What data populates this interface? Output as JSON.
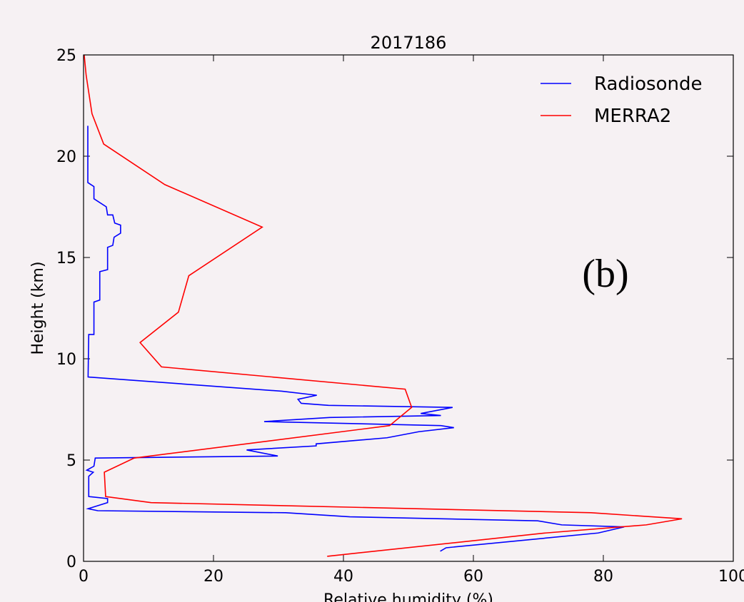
{
  "chart_data": {
    "type": "line",
    "title": "2017186",
    "xlabel": "Relative humidity (%)",
    "ylabel": "Height (km)",
    "xlim": [
      0,
      100
    ],
    "xticks": [
      0,
      20,
      40,
      60,
      80,
      100
    ],
    "ylim": [
      0,
      25
    ],
    "yticks": [
      0,
      5,
      10,
      15,
      20,
      25
    ],
    "legend": "upper right",
    "annotation": "(b)",
    "series": [
      {
        "name": "Radiosonde",
        "color": "#0000ff",
        "x": [
          0.66,
          0.66,
          1.6,
          1.6,
          3.5,
          3.7,
          4.5,
          4.8,
          5.7,
          5.7,
          4.7,
          4.5,
          3.7,
          3.7,
          2.5,
          2.5,
          1.6,
          1.6,
          0.8,
          0.7,
          30.5,
          35.9,
          33,
          33.5,
          37.7,
          56.8,
          51.9,
          55,
          37.9,
          27.8,
          55,
          57,
          51.6,
          46.7,
          35.8,
          35.8,
          25.1,
          29.9,
          1.8,
          1.6,
          0.5,
          1.5,
          0.8,
          0.8,
          3.7,
          3.7,
          0.7,
          2.2,
          31.1,
          41,
          69.9,
          73.6,
          83.2,
          79.2,
          55.8,
          54.9
        ],
        "values": [
          21.5,
          18.7,
          18.5,
          17.9,
          17.5,
          17.1,
          17.1,
          16.7,
          16.6,
          16.2,
          16.0,
          15.6,
          15.5,
          14.4,
          14.3,
          12.9,
          12.8,
          11.2,
          11.2,
          9.1,
          8.4,
          8.2,
          8.0,
          7.8,
          7.7,
          7.6,
          7.3,
          7.2,
          7.1,
          6.9,
          6.7,
          6.6,
          6.4,
          6.1,
          5.8,
          5.7,
          5.5,
          5.2,
          5.1,
          4.7,
          4.5,
          4.4,
          4.2,
          3.2,
          3.1,
          2.9,
          2.6,
          2.5,
          2.4,
          2.2,
          2.0,
          1.8,
          1.7,
          1.4,
          0.67,
          0.5
        ]
      },
      {
        "name": "MERRA2",
        "color": "#ff0000",
        "x": [
          0.1,
          0.4,
          1.3,
          3.1,
          12.5,
          27.5,
          16.2,
          14.6,
          8.7,
          12,
          49.5,
          50.5,
          47.1,
          7.8,
          3.2,
          3.4,
          10.4,
          78.1,
          92.1,
          86.6,
          71.1,
          37.5
        ],
        "values": [
          25,
          24,
          22.1,
          20.6,
          18.6,
          16.5,
          14.1,
          12.3,
          10.8,
          9.6,
          8.5,
          7.6,
          6.7,
          5.1,
          4.4,
          3.2,
          2.9,
          2.4,
          2.1,
          1.8,
          1.4,
          0.25
        ]
      }
    ]
  }
}
